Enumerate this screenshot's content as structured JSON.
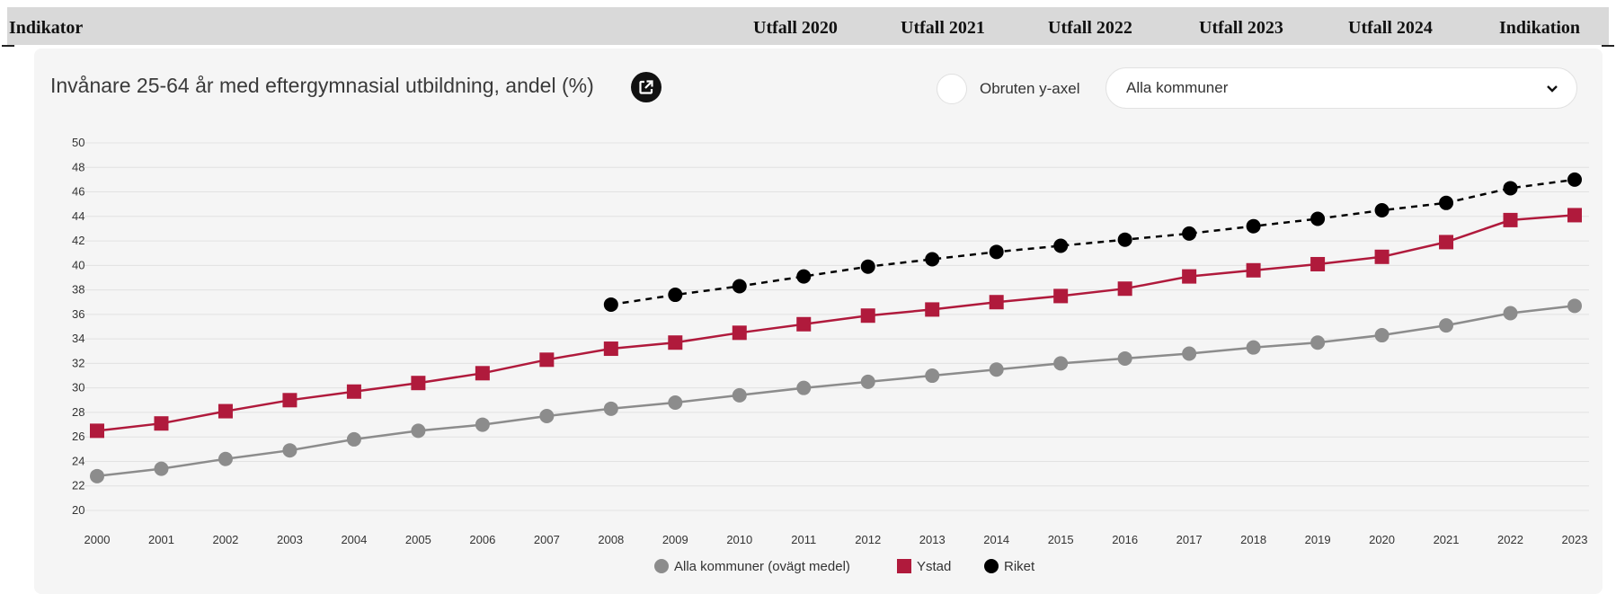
{
  "table_header": {
    "indikator": "Indikator",
    "columns": [
      "Utfall 2020",
      "Utfall 2021",
      "Utfall 2022",
      "Utfall 2023",
      "Utfall 2024"
    ],
    "indikation": "Indikation"
  },
  "controls": {
    "toggle_label": "Obruten y-axel",
    "select_value": "Alla kommuner",
    "external_icon": "external-link-icon",
    "chevron_icon": "chevron-down-icon"
  },
  "chart_data": {
    "type": "line",
    "title": "Invånare 25-64 år med eftergymnasial utbildning, andel (%)",
    "xlabel": "",
    "ylabel": "",
    "ylim": [
      20,
      50
    ],
    "yticks": [
      20,
      22,
      24,
      26,
      28,
      30,
      32,
      34,
      36,
      38,
      40,
      42,
      44,
      46,
      48,
      50
    ],
    "grid": true,
    "legend_position": "bottom",
    "x": [
      "2000",
      "2001",
      "2002",
      "2003",
      "2004",
      "2005",
      "2006",
      "2007",
      "2008",
      "2009",
      "2010",
      "2011",
      "2012",
      "2013",
      "2014",
      "2015",
      "2016",
      "2017",
      "2018",
      "2019",
      "2020",
      "2021",
      "2022",
      "2023"
    ],
    "series": [
      {
        "name": "Alla kommuner (ovägt medel)",
        "color": "#8c8c8c",
        "marker": "circle",
        "dashed": false,
        "values": [
          22.8,
          23.4,
          24.2,
          24.9,
          25.8,
          26.5,
          27.0,
          27.7,
          28.3,
          28.8,
          29.4,
          30.0,
          30.5,
          31.0,
          31.5,
          32.0,
          32.4,
          32.8,
          33.3,
          33.7,
          34.3,
          35.1,
          36.1,
          36.7
        ]
      },
      {
        "name": "Ystad",
        "color": "#b01a3c",
        "marker": "square",
        "dashed": false,
        "values": [
          26.5,
          27.1,
          28.1,
          29.0,
          29.7,
          30.4,
          31.2,
          32.3,
          33.2,
          33.7,
          34.5,
          35.2,
          35.9,
          36.4,
          37.0,
          37.5,
          38.1,
          39.1,
          39.6,
          40.1,
          40.7,
          41.9,
          43.7,
          44.1
        ]
      },
      {
        "name": "Riket",
        "color": "#000000",
        "marker": "circle",
        "dashed": true,
        "values": [
          null,
          null,
          null,
          null,
          null,
          null,
          null,
          null,
          36.8,
          37.6,
          38.3,
          39.1,
          39.9,
          40.5,
          41.1,
          41.6,
          42.1,
          42.6,
          43.2,
          43.8,
          44.5,
          45.1,
          46.3,
          47.0
        ]
      }
    ]
  }
}
